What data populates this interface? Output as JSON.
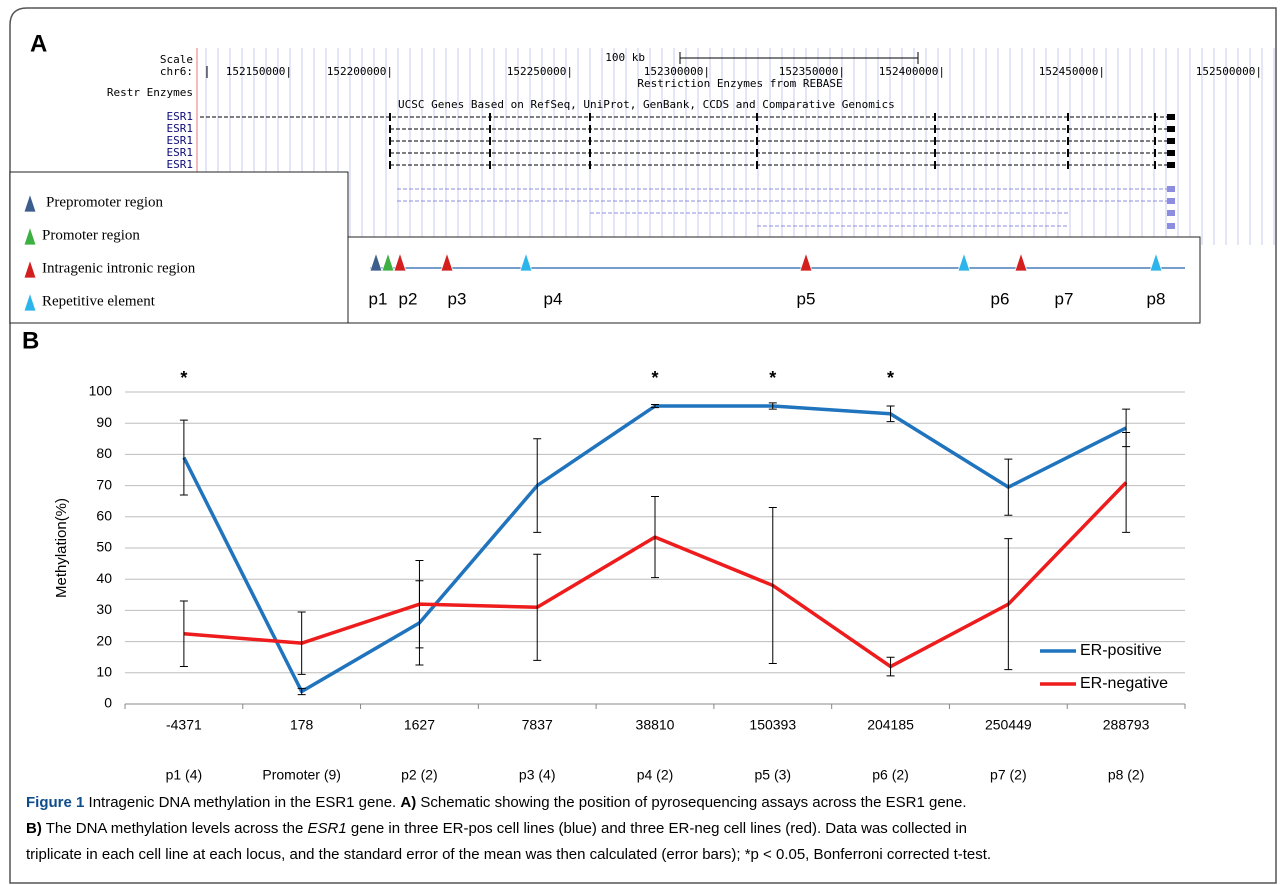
{
  "panel_a": {
    "label": "A",
    "browser": {
      "scale_label": "Scale",
      "chrom_label": "chr6:",
      "scale_text": "100 kb",
      "coordinates": [
        "152150000|",
        "152200000|",
        "152250000|",
        "152300000|",
        "152350000|",
        "152400000|",
        "152450000|",
        "152500000|"
      ],
      "restr_label": "Restr Enzymes",
      "restr_title": "Restriction Enzymes from REBASE",
      "genes_title": "UCSC Genes Based on RefSeq, UniProt, GenBank, CCDS and Comparative Genomics",
      "gene_rows": [
        "ESR1",
        "ESR1",
        "ESR1",
        "ESR1",
        "ESR1"
      ]
    },
    "legend": [
      {
        "name": "Prepromoter region",
        "color": "#3d5e8c"
      },
      {
        "name": "Promoter region",
        "color": "#3cb043"
      },
      {
        "name": "Intragenic intronic region",
        "color": "#d41f1f"
      },
      {
        "name": "Repetitive element",
        "color": "#2bb5ea"
      }
    ],
    "sites": [
      "p1",
      "p2",
      "p3",
      "p4",
      "p5",
      "p6",
      "p7",
      "p8"
    ]
  },
  "chart_data": {
    "type": "line",
    "panel_label": "B",
    "y_label": "Methylation(%)",
    "categories": [
      "-4371",
      "178",
      "1627",
      "7837",
      "38810",
      "150393",
      "204185",
      "250449",
      "288793"
    ],
    "assays": [
      "p1 (4)",
      "Promoter (9)",
      "p2 (2)",
      "p3 (4)",
      "p4 (2)",
      "p5 (3)",
      "p6 (2)",
      "p7 (2)",
      "p8 (2)"
    ],
    "significance": [
      "*",
      null,
      null,
      null,
      "*",
      "*",
      "*",
      null,
      null
    ],
    "series": [
      {
        "name": "ER-positive",
        "color": "#1f74bd",
        "values": [
          79,
          4,
          26,
          70,
          95.5,
          95.5,
          93,
          69.5,
          88.5
        ],
        "errors": [
          12,
          1,
          13.5,
          15,
          0.5,
          1,
          2.5,
          9,
          6
        ]
      },
      {
        "name": "ER-negative",
        "color": "#ee1c1c",
        "values": [
          22.5,
          19.5,
          32,
          31,
          53.5,
          38,
          12,
          32,
          71
        ],
        "errors": [
          10.5,
          10,
          14,
          17,
          13,
          25,
          3,
          21,
          16
        ]
      }
    ],
    "ylim": [
      0,
      100
    ],
    "yticks": [
      0,
      10,
      20,
      30,
      40,
      50,
      60,
      70,
      80,
      90,
      100
    ],
    "grid": true,
    "legend_position": "lower right"
  },
  "caption": {
    "lines": [
      [
        {
          "text": "Figure 1",
          "style": "bold"
        },
        {
          "text": " Intragenic DNA methylation in the ESR1 gene. ",
          "style": "normal"
        },
        {
          "text": "A)",
          "style": "bold"
        },
        {
          "text": " Schematic showing the position of pyrosequencing assays across the ESR1 gene.",
          "style": "normal"
        }
      ],
      [
        {
          "text": "B)",
          "style": "bold"
        },
        {
          "text": " The DNA methylation levels across the ",
          "style": "normal"
        },
        {
          "text": "ESR1",
          "style": "italic"
        },
        {
          "text": " gene in three ER-pos cell lines (blue) and three ER-neg cell lines (red). Data was collected in",
          "style": "normal"
        }
      ],
      [
        {
          "text": "triplicate in each cell line at each locus, and the standard error of the mean was then calculated (error bars); *p < 0.05, Bonferroni corrected t-test.",
          "style": "normal"
        }
      ]
    ]
  }
}
